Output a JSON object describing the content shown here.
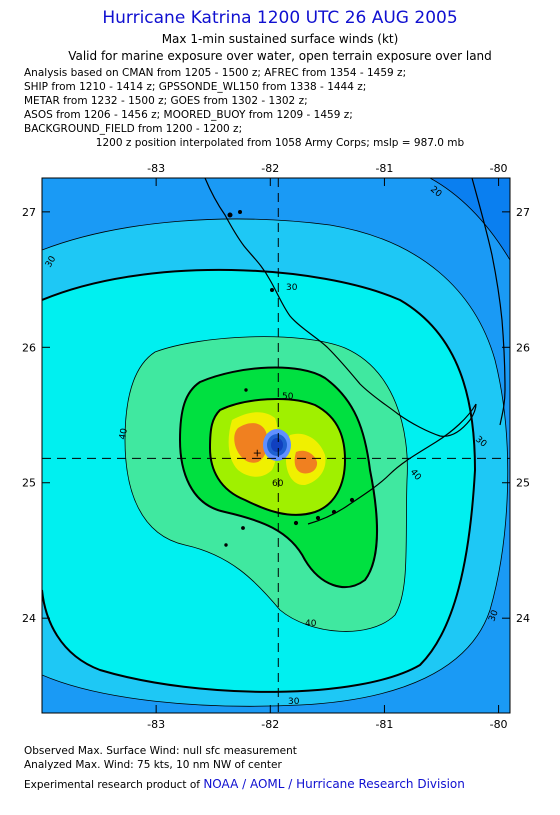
{
  "header": {
    "title": "Hurricane Katrina 1200 UTC 26 AUG 2005",
    "subtitle1": "Max 1-min sustained surface winds (kt)",
    "subtitle2": "Valid for marine exposure over water, open terrain exposure over land"
  },
  "analysis_lines": [
    "Analysis based on  CMAN from 1205 - 1500 z;  AFREC from 1354 - 1459 z;",
    "SHIP from 1210 - 1414 z;  GPSSONDE_WL150 from 1338 - 1444 z;",
    "METAR from 1232 - 1500 z;  GOES from 1302 - 1302 z;",
    "ASOS from 1206 - 1456 z;  MOORED_BUOY from 1209 - 1459 z;",
    "BACKGROUND_FIELD from 1200 - 1200 z;"
  ],
  "position_note": "1200 z position interpolated from 1058 Army Corps; mslp = 987.0 mb",
  "footer": {
    "observed": "Observed Max. Surface Wind: null sfc measurement",
    "analyzed": "Analyzed Max. Wind: 75 kts, 10 nm NW of center",
    "credit_prefix": "Experimental research product of",
    "credit_link": "NOAA / AOML / Hurricane Research Division"
  },
  "map": {
    "lon_ticks": [
      -83,
      -82,
      -81,
      -80
    ],
    "lat_ticks": [
      27,
      26,
      25,
      24
    ],
    "lon_labels": [
      "-83",
      "-82",
      "-81",
      "-80"
    ],
    "lat_labels": [
      "27",
      "26",
      "25",
      "24"
    ],
    "lon_range": [
      -84.0,
      -79.9
    ],
    "lat_range": [
      23.3,
      27.25
    ],
    "center": {
      "lon": -81.93,
      "lat": 25.18
    },
    "contour_labels": [
      "30",
      "30",
      "30",
      "20",
      "40",
      "40",
      "40",
      "50",
      "60",
      "30",
      "30"
    ],
    "colors": {
      "outer": "#0a7ff0",
      "band20": "#1a9af5",
      "band30": "#1ec8f5",
      "band40": "#00f0f0",
      "band50": "#40e8a0",
      "band60": "#00e040",
      "band70": "#a0f000",
      "band75": "#f0f000",
      "core": "#f08020",
      "eye": "#1040c0",
      "land": "#000000"
    }
  }
}
